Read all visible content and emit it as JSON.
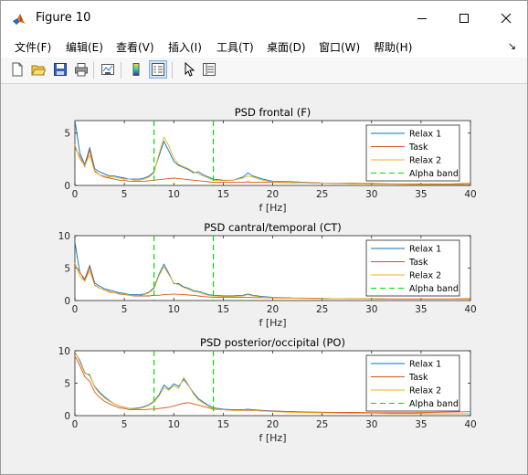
{
  "window": {
    "title": "Figure 10",
    "controls": {
      "minimize": "minimize",
      "maximize": "maximize",
      "close": "close"
    }
  },
  "menu": [
    "文件(F)",
    "编辑(E)",
    "查看(V)",
    "插入(I)",
    "工具(T)",
    "桌面(D)",
    "窗口(W)",
    "帮助(H)"
  ],
  "toolbar": [
    "new-figure-icon",
    "open-file-icon",
    "save-icon",
    "print-icon",
    "link-plot-icon",
    "colorbar-icon",
    "legend-icon",
    "pointer-icon",
    "property-editor-icon"
  ],
  "colors": {
    "relax1": "#0072BD",
    "task": "#D95319",
    "relax2": "#EDB120",
    "alpha": "#00DD00",
    "figure_bg": "#f0f0f0"
  },
  "chart_data": [
    {
      "type": "line",
      "title": "PSD frontal (F)",
      "xlabel": "f [Hz]",
      "ylabel": "",
      "xlim": [
        0,
        40
      ],
      "ylim": [
        0,
        6.2
      ],
      "xticks": [
        0,
        5,
        10,
        15,
        20,
        25,
        30,
        35,
        40
      ],
      "yticks": [
        0,
        5
      ],
      "legend_position": "top-right",
      "x": [
        0,
        0.5,
        1,
        1.5,
        2,
        2.5,
        3,
        3.5,
        4,
        4.5,
        5,
        5.5,
        6,
        6.5,
        7,
        7.5,
        8,
        8.5,
        9,
        9.5,
        10,
        10.5,
        11,
        11.5,
        12,
        12.5,
        13,
        13.5,
        14,
        15,
        16,
        17,
        17.5,
        18,
        19,
        20,
        22,
        24,
        26,
        28,
        30,
        32,
        34,
        36,
        38,
        40
      ],
      "series": [
        {
          "name": "Relax 1",
          "color": "#0072BD",
          "values": [
            6.2,
            3.1,
            2.0,
            3.6,
            1.6,
            1.3,
            1.1,
            0.9,
            0.9,
            0.8,
            0.7,
            0.6,
            0.6,
            0.6,
            0.7,
            0.9,
            1.3,
            2.8,
            4.2,
            3.3,
            2.3,
            1.9,
            1.7,
            1.5,
            1.2,
            1.3,
            1.0,
            0.8,
            0.6,
            0.5,
            0.5,
            0.8,
            1.2,
            0.9,
            0.6,
            0.4,
            0.35,
            0.25,
            0.2,
            0.2,
            0.15,
            0.15,
            0.12,
            0.1,
            0.1,
            0.1
          ]
        },
        {
          "name": "Task",
          "color": "#D95319",
          "values": [
            3.6,
            2.8,
            1.8,
            3.4,
            1.4,
            1.0,
            0.8,
            0.7,
            0.6,
            0.5,
            0.5,
            0.4,
            0.4,
            0.4,
            0.4,
            0.45,
            0.5,
            0.55,
            0.6,
            0.65,
            0.7,
            0.65,
            0.6,
            0.55,
            0.5,
            0.45,
            0.4,
            0.35,
            0.3,
            0.3,
            0.3,
            0.3,
            0.35,
            0.3,
            0.3,
            0.3,
            0.25,
            0.25,
            0.2,
            0.2,
            0.2,
            0.15,
            0.15,
            0.15,
            0.15,
            0.2
          ]
        },
        {
          "name": "Relax 2",
          "color": "#EDB120",
          "values": [
            3.9,
            2.5,
            1.9,
            2.9,
            1.3,
            1.0,
            0.9,
            0.8,
            0.8,
            0.7,
            0.6,
            0.6,
            0.5,
            0.5,
            0.6,
            0.8,
            1.2,
            3.0,
            4.6,
            3.8,
            2.6,
            2.0,
            1.8,
            1.6,
            1.3,
            1.1,
            0.9,
            0.7,
            0.5,
            0.45,
            0.5,
            0.7,
            0.9,
            0.8,
            0.5,
            0.35,
            0.3,
            0.2,
            0.2,
            0.15,
            0.15,
            0.12,
            0.1,
            0.1,
            0.1,
            0.1
          ]
        }
      ],
      "alpha_band": {
        "label": "Alpha band",
        "x": [
          8,
          14
        ]
      }
    },
    {
      "type": "line",
      "title": "PSD cantral/temporal (CT)",
      "xlabel": "f [Hz]",
      "ylabel": "",
      "xlim": [
        0,
        40
      ],
      "ylim": [
        0,
        10
      ],
      "xticks": [
        0,
        5,
        10,
        15,
        20,
        25,
        30,
        35,
        40
      ],
      "yticks": [
        0,
        5,
        10
      ],
      "legend_position": "top-right",
      "x": [
        0,
        0.5,
        1,
        1.5,
        2,
        2.5,
        3,
        3.5,
        4,
        4.5,
        5,
        5.5,
        6,
        6.5,
        7,
        7.5,
        8,
        8.5,
        9,
        9.5,
        10,
        10.5,
        11,
        11.5,
        12,
        12.5,
        13,
        13.5,
        14,
        15,
        16,
        17,
        17.5,
        18,
        19,
        20,
        22,
        24,
        26,
        28,
        30,
        32,
        34,
        36,
        38,
        40
      ],
      "series": [
        {
          "name": "Relax 1",
          "color": "#0072BD",
          "values": [
            9.0,
            4.3,
            3.3,
            5.4,
            2.7,
            2.2,
            1.8,
            1.6,
            1.4,
            1.2,
            1.1,
            0.9,
            0.9,
            0.9,
            1.0,
            1.3,
            2.0,
            4.0,
            5.6,
            4.2,
            2.6,
            2.6,
            2.1,
            1.9,
            1.5,
            1.4,
            1.2,
            0.9,
            0.8,
            0.7,
            0.7,
            0.8,
            1.0,
            0.8,
            0.6,
            0.5,
            0.4,
            0.35,
            0.3,
            0.3,
            0.25,
            0.2,
            0.2,
            0.2,
            0.2,
            0.2
          ]
        },
        {
          "name": "Task",
          "color": "#D95319",
          "values": [
            5.5,
            4.4,
            3.0,
            5.2,
            2.4,
            1.9,
            1.6,
            1.3,
            1.2,
            1.0,
            0.9,
            0.8,
            0.7,
            0.7,
            0.7,
            0.7,
            0.8,
            0.8,
            0.9,
            0.95,
            1.0,
            0.95,
            0.9,
            0.85,
            0.8,
            0.7,
            0.6,
            0.55,
            0.5,
            0.5,
            0.5,
            0.5,
            0.5,
            0.45,
            0.45,
            0.4,
            0.35,
            0.35,
            0.3,
            0.3,
            0.3,
            0.25,
            0.25,
            0.25,
            0.25,
            0.3
          ]
        },
        {
          "name": "Relax 2",
          "color": "#EDB120",
          "values": [
            5.8,
            3.7,
            3.0,
            4.6,
            2.3,
            1.9,
            1.6,
            1.4,
            1.2,
            1.1,
            1.0,
            0.8,
            0.8,
            0.8,
            0.9,
            1.2,
            1.8,
            3.8,
            5.2,
            4.0,
            2.7,
            2.4,
            2.0,
            1.7,
            1.4,
            1.3,
            1.0,
            0.8,
            0.7,
            0.6,
            0.6,
            0.7,
            0.9,
            0.7,
            0.5,
            0.45,
            0.35,
            0.3,
            0.3,
            0.25,
            0.25,
            0.2,
            0.2,
            0.2,
            0.2,
            0.2
          ]
        }
      ],
      "alpha_band": {
        "label": "Alpha band",
        "x": [
          8,
          14
        ]
      }
    },
    {
      "type": "line",
      "title": "PSD posterior/occipital (PO)",
      "xlabel": "f [Hz]",
      "ylabel": "",
      "xlim": [
        0,
        40
      ],
      "ylim": [
        0,
        10
      ],
      "xticks": [
        0,
        5,
        10,
        15,
        20,
        25,
        30,
        35,
        40
      ],
      "yticks": [
        0,
        5,
        10
      ],
      "legend_position": "top-right",
      "x": [
        0,
        0.5,
        1,
        1.5,
        2,
        2.5,
        3,
        3.5,
        4,
        4.5,
        5,
        5.5,
        6,
        6.5,
        7,
        7.5,
        8,
        8.5,
        9,
        9.5,
        10,
        10.5,
        11,
        11.5,
        12,
        12.5,
        13,
        13.5,
        14,
        15,
        16,
        17,
        17.5,
        18,
        19,
        20,
        22,
        24,
        26,
        28,
        30,
        32,
        34,
        36,
        38,
        40
      ],
      "series": [
        {
          "name": "Relax 1",
          "color": "#0072BD",
          "values": [
            9.8,
            8.5,
            6.6,
            6.2,
            4.5,
            3.6,
            2.9,
            2.3,
            1.8,
            1.5,
            1.3,
            1.1,
            1.1,
            1.2,
            1.4,
            1.7,
            2.2,
            3.2,
            4.7,
            4.1,
            4.9,
            4.5,
            5.6,
            4.6,
            3.5,
            2.6,
            2.1,
            1.6,
            1.2,
            1.0,
            0.9,
            0.9,
            1.0,
            0.9,
            0.8,
            0.7,
            0.6,
            0.5,
            0.45,
            0.4,
            0.4,
            0.35,
            0.35,
            0.3,
            0.3,
            0.3
          ]
        },
        {
          "name": "Task",
          "color": "#D95319",
          "values": [
            9.2,
            7.7,
            6.0,
            5.3,
            3.6,
            2.8,
            2.2,
            1.8,
            1.5,
            1.2,
            1.1,
            0.9,
            0.9,
            0.9,
            0.9,
            1.0,
            1.0,
            1.1,
            1.2,
            1.3,
            1.5,
            1.7,
            1.9,
            2.0,
            1.8,
            1.6,
            1.4,
            1.2,
            1.0,
            0.9,
            0.8,
            0.8,
            0.8,
            0.8,
            0.7,
            0.7,
            0.6,
            0.55,
            0.5,
            0.5,
            0.45,
            0.45,
            0.45,
            0.5,
            0.55,
            0.6
          ]
        },
        {
          "name": "Relax 2",
          "color": "#EDB120",
          "values": [
            9.9,
            8.3,
            6.5,
            6.4,
            4.4,
            3.4,
            2.7,
            2.2,
            1.8,
            1.5,
            1.3,
            1.1,
            1.0,
            1.1,
            1.3,
            1.6,
            2.1,
            3.0,
            4.3,
            3.9,
            4.6,
            4.2,
            5.9,
            4.7,
            3.3,
            2.4,
            1.9,
            1.4,
            1.1,
            0.9,
            0.8,
            0.8,
            0.9,
            0.8,
            0.7,
            0.6,
            0.5,
            0.45,
            0.4,
            0.35,
            0.35,
            0.3,
            0.3,
            0.3,
            0.3,
            0.3
          ]
        }
      ],
      "alpha_band": {
        "label": "Alpha band",
        "x": [
          8,
          14
        ]
      }
    }
  ]
}
